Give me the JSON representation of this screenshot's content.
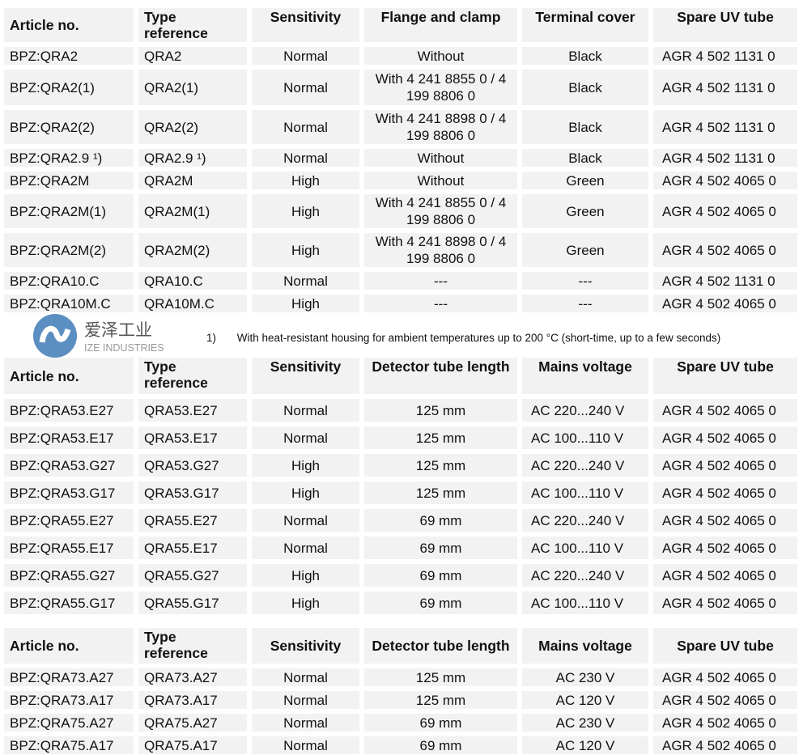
{
  "tables": [
    {
      "headers": [
        "Article no.",
        "Type reference",
        "Sensitivity",
        "Flange and clamp",
        "Terminal cover",
        "Spare UV tube"
      ],
      "rows": [
        [
          "BPZ:QRA2",
          "QRA2",
          "Normal",
          "Without",
          "Black",
          "AGR 4 502 1131 0"
        ],
        [
          "BPZ:QRA2(1)",
          "QRA2(1)",
          "Normal",
          "With 4 241 8855 0 / 4 199 8806 0",
          "Black",
          "AGR 4 502 1131 0"
        ],
        [
          "BPZ:QRA2(2)",
          "QRA2(2)",
          "Normal",
          "With 4 241 8898 0 / 4 199 8806 0",
          "Black",
          "AGR 4 502 1131 0"
        ],
        [
          "BPZ:QRA2.9 ¹)",
          "QRA2.9 ¹)",
          "Normal",
          "Without",
          "Black",
          "AGR 4 502 1131 0"
        ],
        [
          "BPZ:QRA2M",
          "QRA2M",
          "High",
          "Without",
          "Green",
          "AGR 4 502 4065 0"
        ],
        [
          "BPZ:QRA2M(1)",
          "QRA2M(1)",
          "High",
          "With 4 241 8855 0 / 4 199 8806 0",
          "Green",
          "AGR 4 502 4065 0"
        ],
        [
          "BPZ:QRA2M(2)",
          "QRA2M(2)",
          "High",
          "With 4 241 8898 0 / 4 199 8806 0",
          "Green",
          "AGR 4 502 4065 0"
        ],
        [
          "BPZ:QRA10.C",
          "QRA10.C",
          "Normal",
          "---",
          "---",
          "AGR 4 502 1131 0"
        ],
        [
          "BPZ:QRA10M.C",
          "QRA10M.C",
          "High",
          "---",
          "---",
          "AGR 4 502 4065 0"
        ]
      ]
    },
    {
      "headers": [
        "Article no.",
        "Type reference",
        "Sensitivity",
        "Detector tube length",
        "Mains voltage",
        "Spare UV tube"
      ],
      "rows": [
        [
          "BPZ:QRA53.E27",
          "QRA53.E27",
          "Normal",
          "125 mm",
          "AC 220...240 V",
          "AGR 4 502 4065 0"
        ],
        [
          "BPZ:QRA53.E17",
          "QRA53.E17",
          "Normal",
          "125 mm",
          "AC 100...110 V",
          "AGR 4 502 4065 0"
        ],
        [
          "BPZ:QRA53.G27",
          "QRA53.G27",
          "High",
          "125 mm",
          "AC 220...240 V",
          "AGR 4 502 4065 0"
        ],
        [
          "BPZ:QRA53.G17",
          "QRA53.G17",
          "High",
          "125 mm",
          "AC 100...110 V",
          "AGR 4 502 4065 0"
        ],
        [
          "BPZ:QRA55.E27",
          "QRA55.E27",
          "Normal",
          "69 mm",
          "AC 220...240 V",
          "AGR 4 502 4065 0"
        ],
        [
          "BPZ:QRA55.E17",
          "QRA55.E17",
          "Normal",
          "69 mm",
          "AC 100...110 V",
          "AGR 4 502 4065 0"
        ],
        [
          "BPZ:QRA55.G27",
          "QRA55.G27",
          "High",
          "69 mm",
          "AC 220...240 V",
          "AGR 4 502 4065 0"
        ],
        [
          "BPZ:QRA55.G17",
          "QRA55.G17",
          "High",
          "69 mm",
          "AC 100...110 V",
          "AGR 4 502 4065 0"
        ]
      ]
    },
    {
      "headers": [
        "Article no.",
        "Type reference",
        "Sensitivity",
        "Detector tube length",
        "Mains voltage",
        "Spare UV tube"
      ],
      "rows": [
        [
          "BPZ:QRA73.A27",
          "QRA73.A27",
          "Normal",
          "125 mm",
          "AC 230 V",
          "AGR 4 502 4065 0"
        ],
        [
          "BPZ:QRA73.A17",
          "QRA73.A17",
          "Normal",
          "125 mm",
          "AC 120 V",
          "AGR 4 502 4065 0"
        ],
        [
          "BPZ:QRA75.A27",
          "QRA75.A27",
          "Normal",
          "69 mm",
          "AC 230 V",
          "AGR 4 502 4065 0"
        ],
        [
          "BPZ:QRA75.A17",
          "QRA75.A17",
          "Normal",
          "69 mm",
          "AC 120 V",
          "AGR 4 502 4065 0"
        ]
      ]
    }
  ],
  "footnote": {
    "marker": "1)",
    "text": "With heat-resistant housing for ambient temperatures up to 200 °C (short-time, up to a few seconds)"
  },
  "logo": {
    "cn": "爱泽工业",
    "en": "IZE INDUSTRIES",
    "color": "#5b8fc2"
  }
}
